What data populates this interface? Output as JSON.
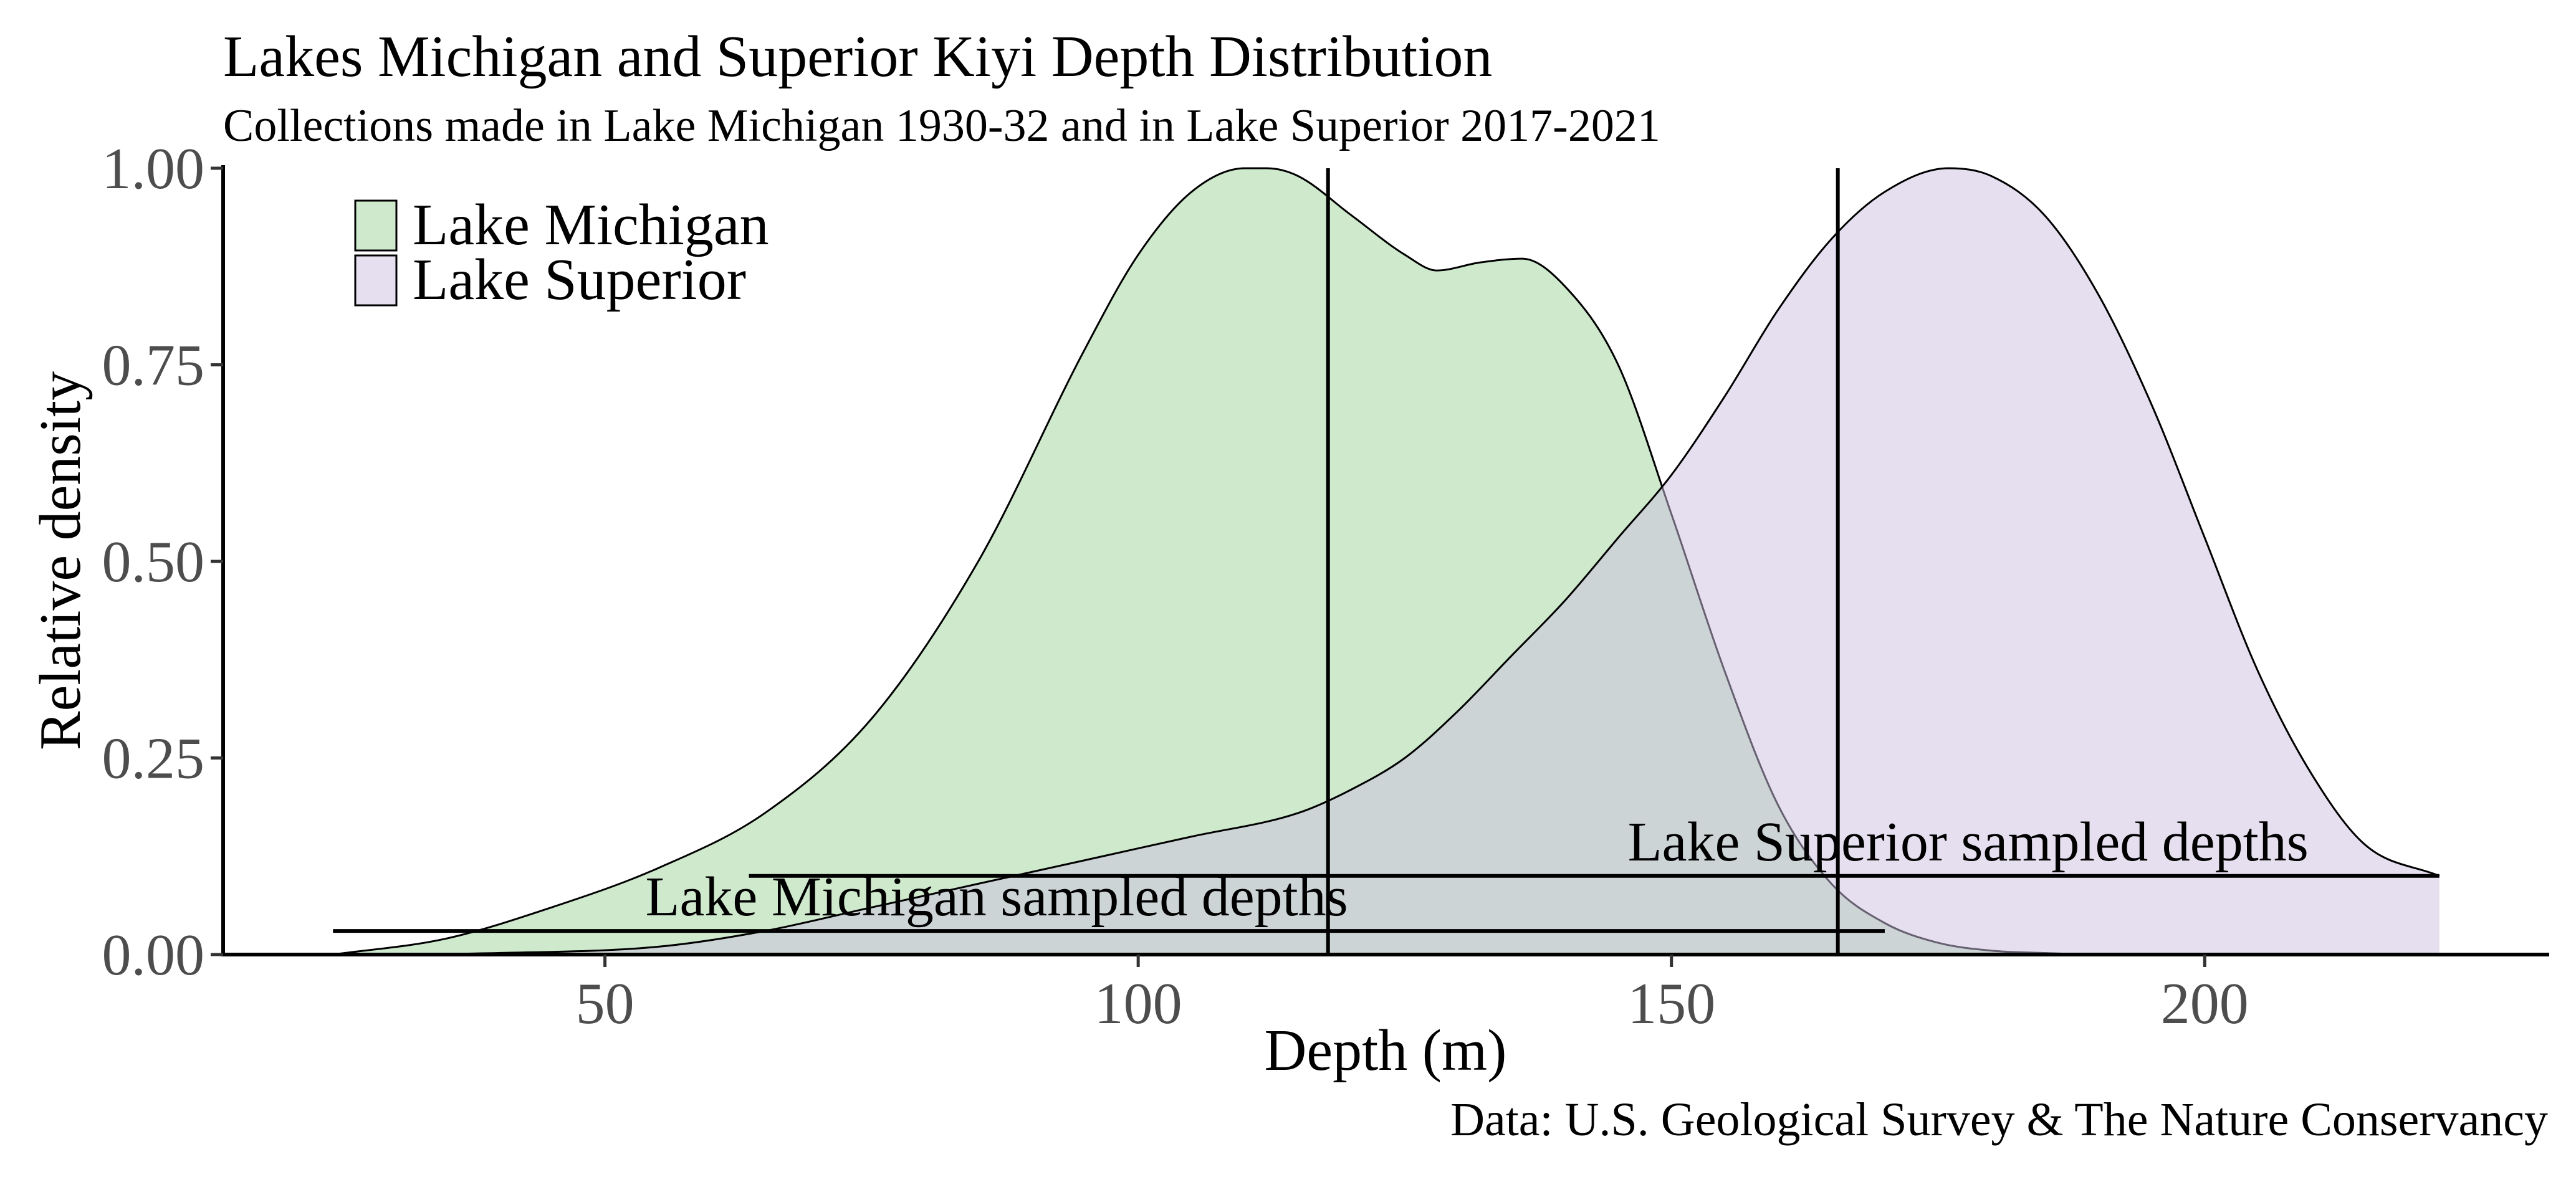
{
  "chart_data": {
    "type": "area",
    "title": "Lakes Michigan and Superior Kiyi Depth Distribution",
    "subtitle": "Collections made in Lake Michigan 1930-32 and in Lake Superior 2017-2021",
    "caption": "Data: U.S. Geological Survey & The Nature Conservancy",
    "xlabel": "Depth (m)",
    "ylabel": "Relative density",
    "xlim": [
      14.2,
      232.3
    ],
    "ylim": [
      0,
      1.0
    ],
    "x_ticks": [
      50,
      100,
      150,
      200
    ],
    "y_ticks": [
      0.0,
      0.25,
      0.5,
      0.75,
      1.0
    ],
    "x_tick_labels": [
      "50",
      "100",
      "150",
      "200"
    ],
    "y_tick_labels": [
      "0.00",
      "0.25",
      "0.50",
      "0.75",
      "1.00"
    ],
    "grid": false,
    "legend_position": "top-left",
    "series": [
      {
        "name": "Lake Michigan",
        "color": "#9fd49c",
        "opacity": 0.5,
        "x": [
          24.5,
          35,
          45,
          55,
          65,
          75,
          85,
          95,
          100,
          105,
          110,
          112,
          115,
          120,
          125,
          128,
          132,
          136,
          140,
          145,
          150,
          155,
          160,
          165,
          170,
          175,
          180,
          185,
          190,
          195
        ],
        "values": [
          0.0,
          0.02,
          0.06,
          0.11,
          0.18,
          0.3,
          0.5,
          0.77,
          0.89,
          0.97,
          1.0,
          1.0,
          0.99,
          0.94,
          0.89,
          0.87,
          0.88,
          0.885,
          0.85,
          0.75,
          0.56,
          0.36,
          0.19,
          0.09,
          0.04,
          0.015,
          0.005,
          0.002,
          0.0,
          0.0
        ]
      },
      {
        "name": "Lake Superior",
        "color": "#cbc0df",
        "opacity": 0.5,
        "x": [
          24.5,
          40,
          55,
          65,
          75,
          85,
          95,
          105,
          115,
          120,
          125,
          130,
          135,
          140,
          145,
          150,
          155,
          160,
          165,
          170,
          176,
          180,
          185,
          190,
          195,
          200,
          205,
          210,
          215,
          222
        ],
        "values": [
          0.0,
          0.002,
          0.01,
          0.03,
          0.06,
          0.09,
          0.12,
          0.15,
          0.18,
          0.21,
          0.25,
          0.31,
          0.38,
          0.45,
          0.53,
          0.61,
          0.71,
          0.82,
          0.91,
          0.97,
          1.0,
          0.99,
          0.94,
          0.84,
          0.7,
          0.53,
          0.36,
          0.23,
          0.14,
          0.1
        ]
      }
    ],
    "vertical_lines": [
      {
        "name": "Lake Michigan",
        "x": 117.8
      },
      {
        "name": "Lake Superior",
        "x": 165.6
      }
    ],
    "range_bars": [
      {
        "name": "Lake Michigan",
        "label": "Lake Michigan sampled depths",
        "x_start": 24.5,
        "x_end": 170.0,
        "y": 0.03
      },
      {
        "name": "Lake Superior",
        "label": "Lake Superior sampled depths",
        "x_start": 63.5,
        "x_end": 222.0,
        "y": 0.1
      }
    ]
  }
}
